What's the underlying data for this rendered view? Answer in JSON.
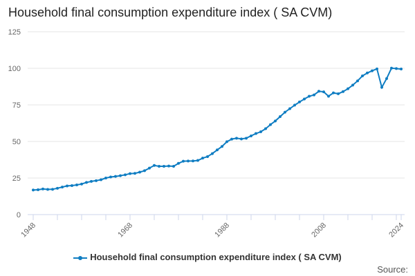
{
  "chart_data": {
    "type": "line",
    "title": "Household final consumption expenditure index ( SA CVM)",
    "xlabel": "",
    "ylabel": "",
    "ylim": [
      0,
      125
    ],
    "xlim": [
      1948,
      2024
    ],
    "yticks": [
      "0",
      "25",
      "50",
      "75",
      "100",
      "125"
    ],
    "xticks": [
      "1948",
      "1968",
      "1988",
      "2008",
      "2024"
    ],
    "grid": true,
    "legend_position": "bottom",
    "color": "#0f7dc2",
    "x": [
      1948,
      1949,
      1950,
      1951,
      1952,
      1953,
      1954,
      1955,
      1956,
      1957,
      1958,
      1959,
      1960,
      1961,
      1962,
      1963,
      1964,
      1965,
      1966,
      1967,
      1968,
      1969,
      1970,
      1971,
      1972,
      1973,
      1974,
      1975,
      1976,
      1977,
      1978,
      1979,
      1980,
      1981,
      1982,
      1983,
      1984,
      1985,
      1986,
      1987,
      1988,
      1989,
      1990,
      1991,
      1992,
      1993,
      1994,
      1995,
      1996,
      1997,
      1998,
      1999,
      2000,
      2001,
      2002,
      2003,
      2004,
      2005,
      2006,
      2007,
      2008,
      2009,
      2010,
      2011,
      2012,
      2013,
      2014,
      2015,
      2016,
      2017,
      2018,
      2019,
      2020,
      2021,
      2022,
      2023,
      2024
    ],
    "series": [
      {
        "name": "Household final consumption expenditure index ( SA CVM)",
        "values": [
          16.8,
          17.0,
          17.5,
          17.2,
          17.3,
          18.0,
          18.8,
          19.6,
          19.8,
          20.3,
          20.9,
          22.0,
          22.7,
          23.2,
          23.8,
          25.0,
          25.7,
          26.1,
          26.6,
          27.2,
          28.0,
          28.2,
          29.0,
          30.0,
          31.8,
          33.6,
          33.0,
          33.0,
          33.2,
          33.0,
          35.0,
          36.5,
          36.6,
          36.7,
          37.0,
          38.6,
          39.6,
          41.7,
          44.2,
          46.6,
          49.8,
          51.6,
          52.2,
          51.7,
          52.2,
          53.8,
          55.4,
          56.6,
          58.7,
          61.5,
          64.0,
          67.0,
          70.0,
          72.4,
          74.8,
          77.0,
          79.0,
          80.9,
          81.8,
          84.3,
          83.9,
          80.9,
          83.2,
          82.6,
          84.1,
          86.0,
          88.5,
          91.4,
          94.8,
          96.8,
          98.3,
          99.6,
          87.0,
          93.0,
          100.1,
          99.8,
          99.5
        ]
      }
    ]
  },
  "source_label": "Source:"
}
